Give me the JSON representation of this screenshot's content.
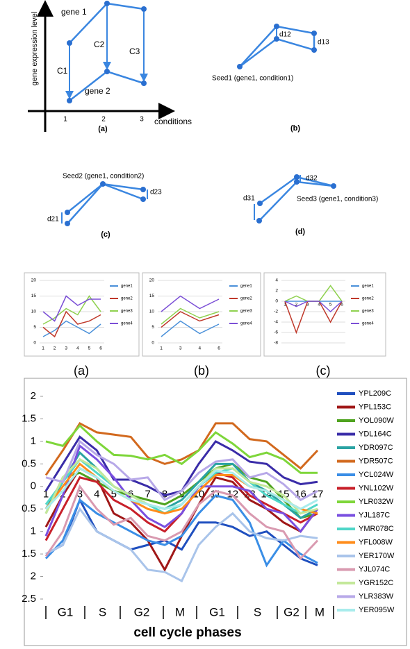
{
  "diagrams": {
    "a": {
      "labels": [
        "gene 1",
        "gene 2",
        "C1",
        "C2",
        "C3"
      ],
      "ylabel": "gene expression level",
      "xlabel": "conditions",
      "ticks": [
        "1",
        "2",
        "3"
      ],
      "caption": "(a)"
    },
    "b": {
      "seed": "Seed1 (gene1, condition1)",
      "labels": [
        "d12",
        "d13"
      ],
      "caption": "(b)"
    },
    "c": {
      "seed": "Seed2 (gene1, condition2)",
      "labels": [
        "d21",
        "d23"
      ],
      "caption": "(c)"
    },
    "d": {
      "seed": "Seed3 (gene1, condition3)",
      "labels": [
        "d31",
        "d32"
      ],
      "caption": "(d)"
    }
  },
  "chart_data": [
    {
      "type": "line",
      "caption": "(a)",
      "categories": [
        "1",
        "2",
        "3",
        "4",
        "5",
        "6"
      ],
      "ylim": [
        0,
        20
      ],
      "yticks": [
        0,
        5,
        10,
        15,
        20
      ],
      "grid": true,
      "series": [
        {
          "name": "gene1",
          "color": "#4a90d9",
          "values": [
            2,
            4,
            7,
            5,
            3,
            6
          ]
        },
        {
          "name": "gene2",
          "color": "#c0392b",
          "values": [
            5,
            2,
            10,
            6,
            7,
            9
          ]
        },
        {
          "name": "gene3",
          "color": "#8fd14f",
          "values": [
            6,
            8,
            11,
            9,
            15,
            10
          ]
        },
        {
          "name": "gene4",
          "color": "#7b4fd6",
          "values": [
            10,
            7,
            15,
            12,
            14,
            14
          ]
        }
      ]
    },
    {
      "type": "line",
      "caption": "(b)",
      "categories": [
        "1",
        "3",
        "4",
        "6"
      ],
      "ylim": [
        0,
        20
      ],
      "yticks": [
        0,
        5,
        10,
        15,
        20
      ],
      "grid": true,
      "series": [
        {
          "name": "gene1",
          "color": "#4a90d9",
          "values": [
            2,
            7,
            3,
            6
          ]
        },
        {
          "name": "gene2",
          "color": "#c0392b",
          "values": [
            5,
            10,
            7,
            9
          ]
        },
        {
          "name": "gene3",
          "color": "#8fd14f",
          "values": [
            6,
            11,
            8,
            10
          ]
        },
        {
          "name": "gene4",
          "color": "#7b4fd6",
          "values": [
            10,
            15,
            11,
            14
          ]
        }
      ]
    },
    {
      "type": "line",
      "caption": "(c)",
      "categories": [
        "1",
        "2",
        "3",
        "4",
        "5",
        "6"
      ],
      "ylim": [
        -8,
        4
      ],
      "yticks": [
        -8,
        -6,
        -4,
        -2,
        0,
        2,
        4
      ],
      "grid": true,
      "series": [
        {
          "name": "gene1",
          "color": "#4a90d9",
          "values": [
            0,
            0,
            0,
            0,
            0,
            0
          ]
        },
        {
          "name": "gene2",
          "color": "#c0392b",
          "values": [
            0,
            -6,
            0,
            0,
            -4,
            0
          ]
        },
        {
          "name": "gene3",
          "color": "#8fd14f",
          "values": [
            0,
            1,
            0,
            0,
            3,
            0
          ]
        },
        {
          "name": "gene4",
          "color": "#7b4fd6",
          "values": [
            0,
            -1,
            0,
            0,
            -2,
            0
          ]
        }
      ]
    },
    {
      "type": "line",
      "xlabel": "cell cycle phases",
      "phases": [
        "G1",
        "S",
        "G2",
        "M",
        "G1",
        "S",
        "G2",
        "M"
      ],
      "categories": [
        "1",
        "2",
        "3",
        "4",
        "5",
        "6",
        "7",
        "8",
        "9",
        "10",
        "11",
        "12",
        "13",
        "14",
        "15",
        "16",
        "17"
      ],
      "ylim": [
        -2.5,
        2
      ],
      "yticks": [
        2,
        1.5,
        1,
        0.5,
        0,
        {
          "value": -0.5,
          "label": "0.5"
        },
        {
          "value": -1,
          "label": "1"
        },
        {
          "value": -1.5,
          "label": "1.5"
        },
        {
          "value": -2,
          "label": "2"
        },
        {
          "value": -2.5,
          "label": "2.5"
        }
      ],
      "grid": false,
      "series": [
        {
          "name": "YPL209C",
          "color": "#1f4fbf",
          "values": [
            -1.5,
            -1.3,
            -0.3,
            -1.0,
            -1.2,
            -1.4,
            -1.3,
            -1.2,
            -1.4,
            -0.8,
            -0.8,
            -0.9,
            -1.1,
            -1.0,
            -1.3,
            -1.6,
            -1.75
          ]
        },
        {
          "name": "YPL153C",
          "color": "#a01818",
          "values": [
            -0.9,
            -0.2,
            0.4,
            0.2,
            -0.6,
            -0.8,
            -1.2,
            -1.85,
            -1.1,
            -0.4,
            0.2,
            0.1,
            -0.3,
            -0.5,
            -0.8,
            -1.0,
            -0.5
          ]
        },
        {
          "name": "YOL090W",
          "color": "#4fa31f",
          "values": [
            -0.6,
            0.2,
            0.3,
            0.1,
            -0.1,
            -0.2,
            -0.3,
            -0.4,
            -0.2,
            0.1,
            0.4,
            0.5,
            0.2,
            0.1,
            -0.3,
            -0.7,
            -0.6
          ]
        },
        {
          "name": "YDL164C",
          "color": "#3a2ca8",
          "values": [
            -0.1,
            0.5,
            1.1,
            0.8,
            0.15,
            0.15,
            0.0,
            -0.2,
            -0.1,
            0.5,
            1.0,
            0.8,
            0.55,
            0.5,
            0.2,
            0.05,
            0.1
          ]
        },
        {
          "name": "YDR097C",
          "color": "#2aa3a3",
          "values": [
            -0.5,
            0.1,
            0.75,
            0.4,
            0.0,
            -0.2,
            -0.4,
            -0.5,
            -0.3,
            0.1,
            0.5,
            0.5,
            0.1,
            -0.1,
            -0.4,
            -0.7,
            -0.5
          ]
        },
        {
          "name": "YDR507C",
          "color": "#d2691e",
          "values": [
            0.25,
            0.8,
            1.4,
            1.2,
            1.15,
            1.1,
            0.65,
            0.5,
            0.6,
            0.8,
            1.4,
            1.4,
            1.05,
            1.0,
            0.7,
            0.4,
            0.8
          ]
        },
        {
          "name": "YCL024W",
          "color": "#3a8ee6",
          "values": [
            -1.6,
            -1.2,
            -0.3,
            -0.6,
            -0.8,
            -1.0,
            -1.2,
            -1.3,
            -1.1,
            -0.6,
            -0.2,
            -0.3,
            -0.8,
            -1.75,
            -1.2,
            -1.5,
            -1.7
          ]
        },
        {
          "name": "YNL102W",
          "color": "#c8202a",
          "values": [
            -1.2,
            -0.5,
            0.2,
            0.1,
            -0.3,
            -0.5,
            -0.8,
            -1.0,
            -0.6,
            0.0,
            0.3,
            0.2,
            -0.2,
            -0.4,
            -0.6,
            -0.8,
            -0.6
          ]
        },
        {
          "name": "YLR032W",
          "color": "#7ed63a",
          "values": [
            1.0,
            0.9,
            1.35,
            1.0,
            0.7,
            0.68,
            0.6,
            0.7,
            0.5,
            0.8,
            1.2,
            0.95,
            0.65,
            0.75,
            0.6,
            0.3,
            0.3
          ]
        },
        {
          "name": "YJL187C",
          "color": "#7a4fe0",
          "values": [
            -1.1,
            -0.2,
            0.9,
            0.6,
            0.2,
            -0.3,
            -0.7,
            -0.9,
            -0.6,
            0.0,
            0.0,
            0.0,
            -0.1,
            -0.5,
            -0.6,
            -1.0,
            -0.5
          ]
        },
        {
          "name": "YMR078C",
          "color": "#4fd6c8",
          "values": [
            -0.4,
            0.1,
            0.6,
            0.3,
            0.0,
            -0.2,
            -0.4,
            -0.6,
            -0.4,
            0.0,
            0.3,
            0.4,
            0.1,
            -0.2,
            -0.4,
            -0.6,
            -0.4
          ]
        },
        {
          "name": "YFL008W",
          "color": "#ff8c1a",
          "values": [
            -0.5,
            0.0,
            0.5,
            0.2,
            -0.1,
            -0.3,
            -0.5,
            -0.6,
            -0.5,
            -0.1,
            0.25,
            0.25,
            0.0,
            -0.1,
            -0.3,
            -0.5,
            -0.6
          ]
        },
        {
          "name": "YER170W",
          "color": "#a9c4ea",
          "values": [
            -1.5,
            -1.3,
            -0.5,
            -1.0,
            -1.2,
            -1.4,
            -1.85,
            -1.9,
            -2.1,
            -1.3,
            -0.9,
            -0.6,
            -1.0,
            -1.15,
            -1.2,
            -1.1,
            -1.15
          ]
        },
        {
          "name": "YJL074C",
          "color": "#d99ab0",
          "values": [
            -1.55,
            -1.0,
            0.0,
            -0.5,
            -0.85,
            -0.7,
            -1.1,
            -1.2,
            -1.0,
            -0.4,
            -0.1,
            -0.2,
            -0.6,
            -0.9,
            -1.0,
            -1.6,
            -1.2
          ]
        },
        {
          "name": "YGR152C",
          "color": "#c3e89a",
          "values": [
            -0.6,
            0.2,
            0.6,
            0.4,
            0.0,
            -0.2,
            -0.4,
            -0.5,
            -0.4,
            0.0,
            0.4,
            0.4,
            0.1,
            0.0,
            -0.2,
            -0.6,
            -0.5
          ]
        },
        {
          "name": "YLR383W",
          "color": "#b7a8e8",
          "values": [
            0.2,
            0.1,
            1.0,
            0.7,
            0.5,
            0.15,
            0.2,
            -0.3,
            -0.1,
            0.3,
            0.55,
            0.6,
            0.2,
            0.3,
            0.05,
            -0.3,
            -0.1
          ]
        },
        {
          "name": "YER095W",
          "color": "#a8ecec",
          "values": [
            -0.5,
            -0.1,
            0.4,
            0.2,
            -0.1,
            -0.3,
            -0.4,
            -0.5,
            -0.4,
            0.0,
            0.35,
            0.3,
            0.0,
            -0.1,
            -0.3,
            -0.5,
            -0.3
          ]
        }
      ]
    }
  ]
}
